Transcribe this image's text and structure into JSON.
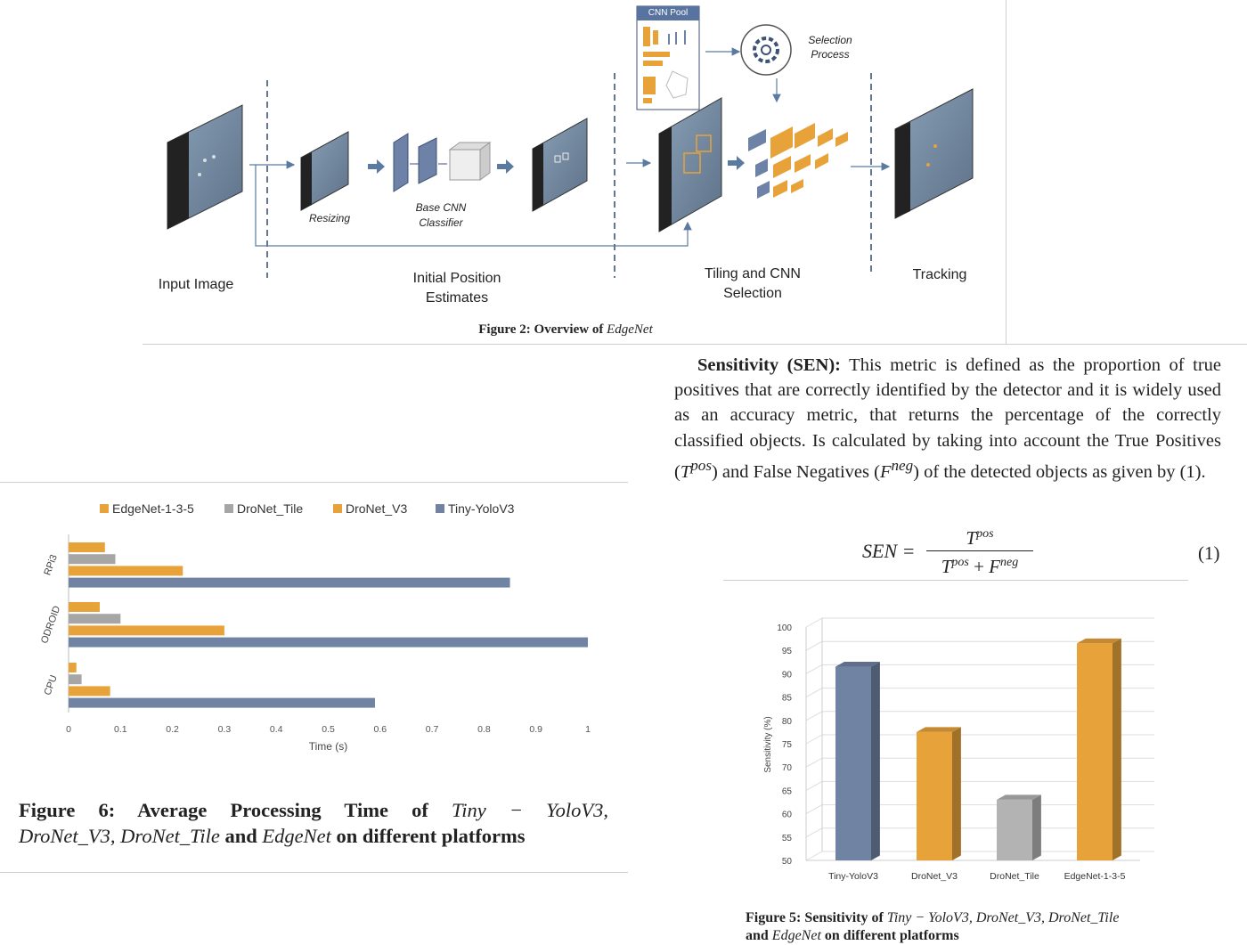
{
  "figure2": {
    "stage_labels": [
      "Input Image",
      "Initial Position\nEstimates",
      "Tiling and CNN\nSelection",
      "Tracking"
    ],
    "resizing_label": "Resizing",
    "base_cnn_label": "Base CNN\nClassifier",
    "cnn_pool_label": "CNN Pool",
    "selection_label": "Selection\nProcess",
    "caption_prefix": "Figure 2: Overview of ",
    "caption_emph": "EdgeNet"
  },
  "section": {
    "heading": "Sensitivity (SEN):",
    "body_1": " This metric is defined as the proportion of true positives that are correctly identified by the detector and it is widely used as an accuracy metric, that returns the percentage of the correctly classified objects. Is calculated by taking into account the True Positives (",
    "tpos": "T",
    "tpos_sup": "pos",
    "body_2": ") and False Negatives (",
    "fneg": "F",
    "fneg_sup": "neg",
    "body_3": ") of the detected objects as given by (1).",
    "equation": {
      "lhs": "SEN =",
      "numerator": "T",
      "numerator_sup": "pos",
      "denominator_a": "T",
      "denominator_a_sup": "pos",
      "plus": " + ",
      "denominator_b": "F",
      "denominator_b_sup": "neg",
      "number": "(1)"
    }
  },
  "figure6": {
    "caption_line1_prefix": "Figure 6:  Average Processing Time of ",
    "caption_line1_emph": "Tiny − YoloV3,",
    "caption_line2_emph1": "DroNet_V3, DroNet_Tile",
    "caption_line2_mid": " and ",
    "caption_line2_emph2": "EdgeNet",
    "caption_line2_suffix": " on different platforms"
  },
  "figure5": {
    "caption_line1_prefix": "Figure 5: Sensitivity of ",
    "caption_line1_emph": "Tiny − YoloV3, DroNet_V3, DroNet_Tile",
    "caption_line2_prefix": "and ",
    "caption_line2_emph": "EdgeNet",
    "caption_line2_suffix": " on different platforms"
  },
  "chart_data": [
    {
      "type": "bar",
      "orientation": "horizontal",
      "categories": [
        "RPi3",
        "ODROID",
        "CPU"
      ],
      "series": [
        {
          "name": "EdgeNet-1-3-5",
          "color": "#E8A23A",
          "values": [
            0.07,
            0.06,
            0.015
          ]
        },
        {
          "name": "DroNet_Tile",
          "color": "#A6A6A6",
          "values": [
            0.09,
            0.1,
            0.025
          ]
        },
        {
          "name": "DroNet_V3",
          "color": "#E8A23A",
          "values": [
            0.22,
            0.3,
            0.08
          ]
        },
        {
          "name": "Tiny-YoloV3",
          "color": "#7083A3",
          "values": [
            0.85,
            1.0,
            0.59
          ]
        }
      ],
      "xlabel": "Time (s)",
      "xlim": [
        0,
        1
      ],
      "xticks": [
        "0",
        "0.1",
        "0.2",
        "0.3",
        "0.4",
        "0.5",
        "0.6",
        "0.7",
        "0.8",
        "0.9",
        "1"
      ],
      "legend_position": "top",
      "grid": false
    },
    {
      "type": "bar",
      "style": "3d",
      "categories": [
        "Tiny-YoloV3",
        "DroNet_V3",
        "DroNet_Tile",
        "EdgeNet-1-3-5"
      ],
      "values": [
        91.5,
        77.5,
        63,
        96.5
      ],
      "colors": [
        "#7083A3",
        "#E8A23A",
        "#B3B3B3",
        "#E8A23A"
      ],
      "ylabel": "Sensitivity (%)",
      "ylim": [
        50,
        100
      ],
      "yticks": [
        "50",
        "55",
        "60",
        "65",
        "70",
        "75",
        "80",
        "85",
        "90",
        "95",
        "100"
      ],
      "grid": true
    }
  ]
}
